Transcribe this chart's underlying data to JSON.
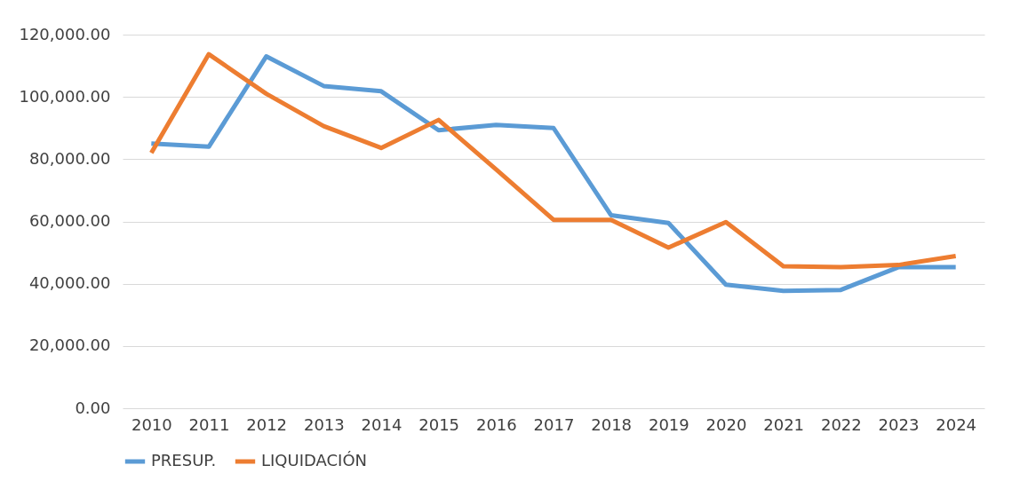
{
  "chart_data": {
    "type": "line",
    "categories": [
      "2010",
      "2011",
      "2012",
      "2013",
      "2014",
      "2015",
      "2016",
      "2017",
      "2018",
      "2019",
      "2020",
      "2021",
      "2022",
      "2023",
      "2024"
    ],
    "series": [
      {
        "name": "PRESUP.",
        "color": "#5b9bd5",
        "values": [
          85000,
          84000,
          113000,
          103500,
          101800,
          89300,
          91000,
          90000,
          62000,
          59500,
          39700,
          37700,
          38000,
          45300,
          45300
        ]
      },
      {
        "name": "LIQUIDACIÓN",
        "color": "#ed7d31",
        "values": [
          82000,
          113700,
          101000,
          90600,
          83600,
          92600,
          76700,
          60500,
          60500,
          51600,
          59800,
          45600,
          45300,
          46000,
          48900
        ]
      }
    ],
    "ylim": [
      0,
      120000
    ],
    "yticks": [
      {
        "value": 0,
        "label": "0.00"
      },
      {
        "value": 20000,
        "label": "20,000.00"
      },
      {
        "value": 40000,
        "label": "40,000.00"
      },
      {
        "value": 60000,
        "label": "60,000.00"
      },
      {
        "value": 80000,
        "label": "80,000.00"
      },
      {
        "value": 100000,
        "label": "100,000.00"
      },
      {
        "value": 120000,
        "label": "120,000.00"
      }
    ],
    "grid": "y",
    "legend": "bottom",
    "marker": "none",
    "line_style": "solid"
  }
}
